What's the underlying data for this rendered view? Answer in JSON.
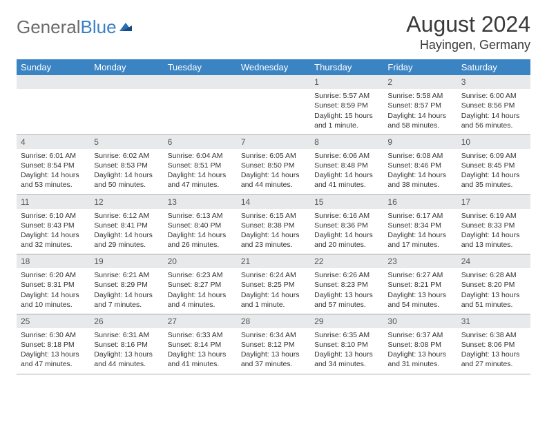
{
  "logo": {
    "text1": "General",
    "text2": "Blue"
  },
  "title": "August 2024",
  "location": "Hayingen, Germany",
  "colors": {
    "header_bg": "#3b84c4",
    "header_text": "#ffffff",
    "daynum_bg": "#e8e9ea",
    "border": "#a8a8a8",
    "logo_gray": "#6b6b6b",
    "logo_blue": "#3b7fc4"
  },
  "weekdays": [
    "Sunday",
    "Monday",
    "Tuesday",
    "Wednesday",
    "Thursday",
    "Friday",
    "Saturday"
  ],
  "first_weekday_index": 4,
  "days": [
    {
      "n": 1,
      "sr": "5:57 AM",
      "ss": "8:59 PM",
      "dl": "15 hours and 1 minute."
    },
    {
      "n": 2,
      "sr": "5:58 AM",
      "ss": "8:57 PM",
      "dl": "14 hours and 58 minutes."
    },
    {
      "n": 3,
      "sr": "6:00 AM",
      "ss": "8:56 PM",
      "dl": "14 hours and 56 minutes."
    },
    {
      "n": 4,
      "sr": "6:01 AM",
      "ss": "8:54 PM",
      "dl": "14 hours and 53 minutes."
    },
    {
      "n": 5,
      "sr": "6:02 AM",
      "ss": "8:53 PM",
      "dl": "14 hours and 50 minutes."
    },
    {
      "n": 6,
      "sr": "6:04 AM",
      "ss": "8:51 PM",
      "dl": "14 hours and 47 minutes."
    },
    {
      "n": 7,
      "sr": "6:05 AM",
      "ss": "8:50 PM",
      "dl": "14 hours and 44 minutes."
    },
    {
      "n": 8,
      "sr": "6:06 AM",
      "ss": "8:48 PM",
      "dl": "14 hours and 41 minutes."
    },
    {
      "n": 9,
      "sr": "6:08 AM",
      "ss": "8:46 PM",
      "dl": "14 hours and 38 minutes."
    },
    {
      "n": 10,
      "sr": "6:09 AM",
      "ss": "8:45 PM",
      "dl": "14 hours and 35 minutes."
    },
    {
      "n": 11,
      "sr": "6:10 AM",
      "ss": "8:43 PM",
      "dl": "14 hours and 32 minutes."
    },
    {
      "n": 12,
      "sr": "6:12 AM",
      "ss": "8:41 PM",
      "dl": "14 hours and 29 minutes."
    },
    {
      "n": 13,
      "sr": "6:13 AM",
      "ss": "8:40 PM",
      "dl": "14 hours and 26 minutes."
    },
    {
      "n": 14,
      "sr": "6:15 AM",
      "ss": "8:38 PM",
      "dl": "14 hours and 23 minutes."
    },
    {
      "n": 15,
      "sr": "6:16 AM",
      "ss": "8:36 PM",
      "dl": "14 hours and 20 minutes."
    },
    {
      "n": 16,
      "sr": "6:17 AM",
      "ss": "8:34 PM",
      "dl": "14 hours and 17 minutes."
    },
    {
      "n": 17,
      "sr": "6:19 AM",
      "ss": "8:33 PM",
      "dl": "14 hours and 13 minutes."
    },
    {
      "n": 18,
      "sr": "6:20 AM",
      "ss": "8:31 PM",
      "dl": "14 hours and 10 minutes."
    },
    {
      "n": 19,
      "sr": "6:21 AM",
      "ss": "8:29 PM",
      "dl": "14 hours and 7 minutes."
    },
    {
      "n": 20,
      "sr": "6:23 AM",
      "ss": "8:27 PM",
      "dl": "14 hours and 4 minutes."
    },
    {
      "n": 21,
      "sr": "6:24 AM",
      "ss": "8:25 PM",
      "dl": "14 hours and 1 minute."
    },
    {
      "n": 22,
      "sr": "6:26 AM",
      "ss": "8:23 PM",
      "dl": "13 hours and 57 minutes."
    },
    {
      "n": 23,
      "sr": "6:27 AM",
      "ss": "8:21 PM",
      "dl": "13 hours and 54 minutes."
    },
    {
      "n": 24,
      "sr": "6:28 AM",
      "ss": "8:20 PM",
      "dl": "13 hours and 51 minutes."
    },
    {
      "n": 25,
      "sr": "6:30 AM",
      "ss": "8:18 PM",
      "dl": "13 hours and 47 minutes."
    },
    {
      "n": 26,
      "sr": "6:31 AM",
      "ss": "8:16 PM",
      "dl": "13 hours and 44 minutes."
    },
    {
      "n": 27,
      "sr": "6:33 AM",
      "ss": "8:14 PM",
      "dl": "13 hours and 41 minutes."
    },
    {
      "n": 28,
      "sr": "6:34 AM",
      "ss": "8:12 PM",
      "dl": "13 hours and 37 minutes."
    },
    {
      "n": 29,
      "sr": "6:35 AM",
      "ss": "8:10 PM",
      "dl": "13 hours and 34 minutes."
    },
    {
      "n": 30,
      "sr": "6:37 AM",
      "ss": "8:08 PM",
      "dl": "13 hours and 31 minutes."
    },
    {
      "n": 31,
      "sr": "6:38 AM",
      "ss": "8:06 PM",
      "dl": "13 hours and 27 minutes."
    }
  ],
  "labels": {
    "sunrise": "Sunrise: ",
    "sunset": "Sunset: ",
    "daylight": "Daylight: "
  }
}
